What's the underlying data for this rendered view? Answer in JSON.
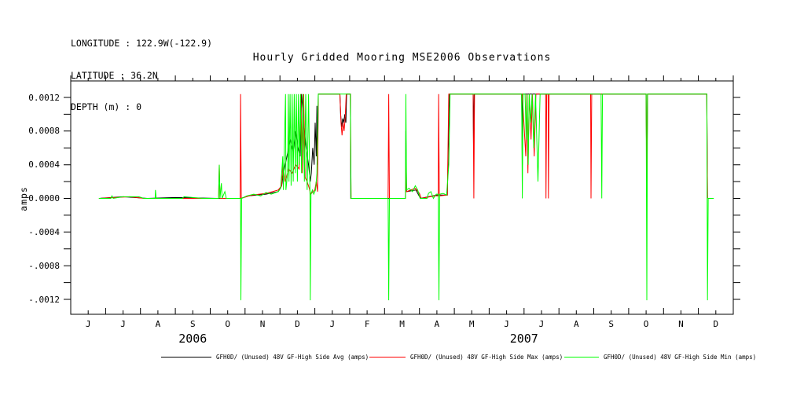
{
  "header": {
    "longitude": "LONGITUDE : 122.9W(-122.9)",
    "latitude": "LATITUDE : 36.2N",
    "depth": "DEPTH (m) : 0"
  },
  "title": "Hourly Gridded Mooring MSE2006 Observations",
  "y_axis": {
    "label": "amps",
    "major_ticks": [
      {
        "value": 0.0012,
        "label": "0.0012"
      },
      {
        "value": 0.0008,
        "label": "0.0008"
      },
      {
        "value": 0.0004,
        "label": "0.0004"
      },
      {
        "value": 0.0,
        "label": "0.0000"
      },
      {
        "value": -0.0004,
        "label": "-.0004"
      },
      {
        "value": -0.0008,
        "label": "-.0008"
      },
      {
        "value": -0.0012,
        "label": "-.0012"
      }
    ],
    "minor_step": 0.0002
  },
  "x_axis": {
    "months": [
      "J",
      "J",
      "A",
      "S",
      "O",
      "N",
      "D",
      "J",
      "F",
      "M",
      "A",
      "M",
      "J",
      "J",
      "A",
      "S",
      "O",
      "N",
      "D"
    ],
    "years": [
      {
        "label": "2006",
        "center_month_index": 3.5
      },
      {
        "label": "2007",
        "center_month_index": 13
      }
    ]
  },
  "legend": {
    "entries": [
      {
        "key": "avg",
        "color": "#000000",
        "label": "GFH0D/ (Unused) 48V GF-High Side Avg (amps)"
      },
      {
        "key": "max",
        "color": "#ff0000",
        "label": "GFH0D/ (Unused) 48V GF-High Side Max (amps)"
      },
      {
        "key": "min",
        "color": "#00ff00",
        "label": "GFH0D/ (Unused) 48V GF-High Side Min (amps)"
      }
    ]
  },
  "chart_data": {
    "type": "line",
    "title": "Hourly Gridded Mooring MSE2006 Observations",
    "ylabel": "amps",
    "ylim": [
      -0.00138,
      0.0014
    ],
    "x_unit": "months along axis, 0 = first tick (J, 2006) to 19 = last tick (after D, 2007)",
    "x_tick_months": [
      "J",
      "J",
      "A",
      "S",
      "O",
      "N",
      "D",
      "J",
      "F",
      "M",
      "A",
      "M",
      "J",
      "J",
      "A",
      "S",
      "O",
      "N",
      "D"
    ],
    "grid": false,
    "legend_position": "bottom",
    "series": [
      {
        "name": "GFH0D/ (Unused) 48V GF-High Side Avg (amps)",
        "color": "#000000",
        "points": [
          [
            0.81,
            0
          ],
          [
            1.5,
            2e-05
          ],
          [
            2.2,
            0
          ],
          [
            3.0,
            1e-05
          ],
          [
            4.2,
            0
          ],
          [
            4.88,
            0
          ],
          [
            5.1,
            3e-05
          ],
          [
            5.6,
            5e-05
          ],
          [
            5.95,
            8e-05
          ],
          [
            6.05,
            0.00015
          ],
          [
            6.1,
            0.0003
          ],
          [
            6.2,
            0.0005
          ],
          [
            6.3,
            0.0007
          ],
          [
            6.38,
            0.00055
          ],
          [
            6.45,
            0.0008
          ],
          [
            6.52,
            0.0006
          ],
          [
            6.58,
            0.0005
          ],
          [
            6.62,
            0.00124
          ],
          [
            6.68,
            0.0009
          ],
          [
            6.75,
            0.0006
          ],
          [
            6.82,
            0.0004
          ],
          [
            6.87,
            0.0002
          ],
          [
            6.9,
            0.0003
          ],
          [
            6.94,
            0.0006
          ],
          [
            6.98,
            0.0004
          ],
          [
            7.01,
            0.0009
          ],
          [
            7.04,
            0.0005
          ],
          [
            7.06,
            0.0011
          ],
          [
            7.08,
            0.0004
          ],
          [
            7.1,
            0.00124
          ],
          [
            7.72,
            0.00124
          ],
          [
            7.74,
            0.001
          ],
          [
            7.77,
            0.00085
          ],
          [
            7.8,
            0.00095
          ],
          [
            7.83,
            0.0009
          ],
          [
            7.86,
            0.001
          ],
          [
            7.89,
            0.0009
          ],
          [
            7.91,
            0.00124
          ],
          [
            8.02,
            0.00124
          ],
          [
            8.03,
            0
          ],
          [
            9.6,
            0
          ],
          [
            9.61,
            0.0008
          ],
          [
            9.63,
            8e-05
          ],
          [
            9.9,
            0.0001
          ],
          [
            10.03,
            0
          ],
          [
            10.5,
            4e-05
          ],
          [
            10.8,
            4e-05
          ],
          [
            10.86,
            0.00124
          ],
          [
            11.54,
            0.00124
          ],
          [
            11.55,
            0.0006
          ],
          [
            11.57,
            0.00124
          ],
          [
            12.93,
            0.00124
          ],
          [
            12.95,
            0.0004
          ],
          [
            12.96,
            0.00124
          ],
          [
            16.5,
            0.00124
          ],
          [
            16.52,
            0
          ],
          [
            16.54,
            0.00124
          ],
          [
            18.24,
            0.00124
          ],
          [
            18.26,
            0
          ]
        ]
      },
      {
        "name": "GFH0D/ (Unused) 48V GF-High Side Max (amps)",
        "color": "#ff0000",
        "points": [
          [
            0.81,
            0
          ],
          [
            1.7,
            2e-05
          ],
          [
            2.1,
            0
          ],
          [
            4.24,
            0
          ],
          [
            4.26,
            0.0004
          ],
          [
            4.28,
            0
          ],
          [
            4.86,
            0
          ],
          [
            4.87,
            0.00124
          ],
          [
            4.89,
            0
          ],
          [
            5.2,
            4e-05
          ],
          [
            5.6,
            6e-05
          ],
          [
            5.95,
            0.0001
          ],
          [
            6.05,
            0.00015
          ],
          [
            6.08,
            0.0004
          ],
          [
            6.15,
            0.0002
          ],
          [
            6.25,
            0.00035
          ],
          [
            6.35,
            0.0003
          ],
          [
            6.45,
            0.0004
          ],
          [
            6.55,
            0.00035
          ],
          [
            6.6,
            0.00124
          ],
          [
            6.64,
            0.0003
          ],
          [
            6.68,
            0.00124
          ],
          [
            6.72,
            0.00025
          ],
          [
            6.78,
            0.0002
          ],
          [
            6.84,
            0.00012
          ],
          [
            6.88,
            5e-05
          ],
          [
            6.95,
            8e-05
          ],
          [
            7.0,
            0.0001
          ],
          [
            7.04,
            0.0002
          ],
          [
            7.08,
            8e-05
          ],
          [
            7.1,
            0.00124
          ],
          [
            7.72,
            0.00124
          ],
          [
            7.75,
            0.0009
          ],
          [
            7.78,
            0.00075
          ],
          [
            7.81,
            0.0009
          ],
          [
            7.84,
            0.0008
          ],
          [
            7.87,
            0.00095
          ],
          [
            7.9,
            0.00124
          ],
          [
            8.02,
            0.00124
          ],
          [
            8.04,
            0
          ],
          [
            9.1,
            0
          ],
          [
            9.12,
            0.00124
          ],
          [
            9.14,
            0
          ],
          [
            9.6,
            0
          ],
          [
            9.61,
            0.0004
          ],
          [
            9.63,
            8e-05
          ],
          [
            9.88,
            0.00012
          ],
          [
            10.0,
            6e-05
          ],
          [
            10.05,
            0
          ],
          [
            10.45,
            3e-05
          ],
          [
            10.54,
            3e-05
          ],
          [
            10.55,
            0.00124
          ],
          [
            10.57,
            3e-05
          ],
          [
            10.8,
            4e-05
          ],
          [
            10.84,
            0.00124
          ],
          [
            11.54,
            0.00124
          ],
          [
            11.56,
            0
          ],
          [
            11.58,
            0.00124
          ],
          [
            12.95,
            0.00124
          ],
          [
            13.05,
            0.0005
          ],
          [
            13.08,
            0.00124
          ],
          [
            13.11,
            0.0003
          ],
          [
            13.15,
            0.00124
          ],
          [
            13.2,
            0.0007
          ],
          [
            13.24,
            0.00124
          ],
          [
            13.29,
            0.0005
          ],
          [
            13.34,
            0.00124
          ],
          [
            13.62,
            0.00124
          ],
          [
            13.63,
            0
          ],
          [
            13.65,
            0.00124
          ],
          [
            13.69,
            0.00124
          ],
          [
            13.7,
            0
          ],
          [
            13.72,
            0.00124
          ],
          [
            14.91,
            0.00124
          ],
          [
            14.92,
            0
          ],
          [
            14.94,
            0.00124
          ],
          [
            16.5,
            0.00124
          ],
          [
            16.52,
            0
          ],
          [
            16.54,
            0.00124
          ],
          [
            18.24,
            0.00124
          ],
          [
            18.26,
            0
          ]
        ]
      },
      {
        "name": "GFH0D/ (Unused) 48V GF-High Side Min (amps)",
        "color": "#00ff00",
        "points": [
          [
            0.81,
            0
          ],
          [
            1.15,
            0
          ],
          [
            1.18,
            3e-05
          ],
          [
            1.22,
            0
          ],
          [
            1.5,
            2e-05
          ],
          [
            1.95,
            2e-05
          ],
          [
            2.1,
            0
          ],
          [
            2.42,
            0
          ],
          [
            2.43,
            0.0001
          ],
          [
            2.45,
            0
          ],
          [
            3.2,
            0
          ],
          [
            3.25,
            2e-05
          ],
          [
            3.8,
            0
          ],
          [
            4.24,
            0
          ],
          [
            4.26,
            0.0004
          ],
          [
            4.28,
            0
          ],
          [
            4.32,
            0.00018
          ],
          [
            4.34,
            0
          ],
          [
            4.42,
            8e-05
          ],
          [
            4.46,
            0
          ],
          [
            4.87,
            0
          ],
          [
            4.88,
            -0.00121
          ],
          [
            4.9,
            0
          ],
          [
            5.05,
            3e-05
          ],
          [
            5.25,
            5e-05
          ],
          [
            5.45,
            3e-05
          ],
          [
            5.6,
            7e-05
          ],
          [
            5.75,
            5e-05
          ],
          [
            5.95,
            8e-05
          ],
          [
            6.02,
            0.00012
          ],
          [
            6.08,
            0.0005
          ],
          [
            6.1,
            0.0001
          ],
          [
            6.16,
            0.00124
          ],
          [
            6.17,
            0.0001
          ],
          [
            6.22,
            0.0003
          ],
          [
            6.24,
            0.00124
          ],
          [
            6.26,
            0.0002
          ],
          [
            6.29,
            0.00124
          ],
          [
            6.32,
            0.00015
          ],
          [
            6.35,
            0.00124
          ],
          [
            6.38,
            0.0002
          ],
          [
            6.41,
            0.00124
          ],
          [
            6.44,
            0.0003
          ],
          [
            6.47,
            0.00124
          ],
          [
            6.5,
            0.0002
          ],
          [
            6.53,
            0.00124
          ],
          [
            6.56,
            0.0004
          ],
          [
            6.59,
            0.00124
          ],
          [
            6.62,
            0.0003
          ],
          [
            6.66,
            0.00124
          ],
          [
            6.7,
            0.0002
          ],
          [
            6.74,
            0.00124
          ],
          [
            6.78,
            0.0001
          ],
          [
            6.82,
            0.00124
          ],
          [
            6.86,
            5e-05
          ],
          [
            6.87,
            -0.00121
          ],
          [
            6.89,
            5e-05
          ],
          [
            6.93,
            0.0001
          ],
          [
            6.97,
            5e-05
          ],
          [
            7.02,
            0.0001
          ],
          [
            7.06,
            0.0003
          ],
          [
            7.1,
            0.00124
          ],
          [
            8.02,
            0.00124
          ],
          [
            8.04,
            0
          ],
          [
            9.1,
            0
          ],
          [
            9.12,
            -0.00121
          ],
          [
            9.14,
            0
          ],
          [
            9.6,
            0
          ],
          [
            9.61,
            0.00124
          ],
          [
            9.63,
            0.0001
          ],
          [
            9.7,
            0.00012
          ],
          [
            9.8,
            8e-05
          ],
          [
            9.88,
            0.00015
          ],
          [
            9.95,
            0.0001
          ],
          [
            10.02,
            0
          ],
          [
            10.22,
            0
          ],
          [
            10.26,
            6e-05
          ],
          [
            10.33,
            8e-05
          ],
          [
            10.4,
            0
          ],
          [
            10.48,
            5e-05
          ],
          [
            10.54,
            5e-05
          ],
          [
            10.56,
            -0.00121
          ],
          [
            10.58,
            5e-05
          ],
          [
            10.68,
            6e-05
          ],
          [
            10.78,
            4e-05
          ],
          [
            10.84,
            0.0004
          ],
          [
            10.88,
            0.00124
          ],
          [
            12.93,
            0.00124
          ],
          [
            12.95,
            0
          ],
          [
            12.97,
            0.00124
          ],
          [
            13.03,
            0.00124
          ],
          [
            13.06,
            0.0007
          ],
          [
            13.09,
            0.00124
          ],
          [
            13.12,
            0.0004
          ],
          [
            13.15,
            0.00124
          ],
          [
            13.19,
            0.0009
          ],
          [
            13.23,
            0.00124
          ],
          [
            13.28,
            0.0006
          ],
          [
            13.33,
            0.00124
          ],
          [
            13.4,
            0.0002
          ],
          [
            13.46,
            0.00124
          ],
          [
            15.21,
            0.00124
          ],
          [
            15.23,
            0
          ],
          [
            15.25,
            0.00124
          ],
          [
            16.5,
            0.00124
          ],
          [
            16.52,
            -0.00121
          ],
          [
            16.54,
            0.00124
          ],
          [
            18.24,
            0.00124
          ],
          [
            18.26,
            -0.00121
          ],
          [
            18.28,
            0
          ],
          [
            18.44,
            0
          ]
        ]
      }
    ]
  }
}
